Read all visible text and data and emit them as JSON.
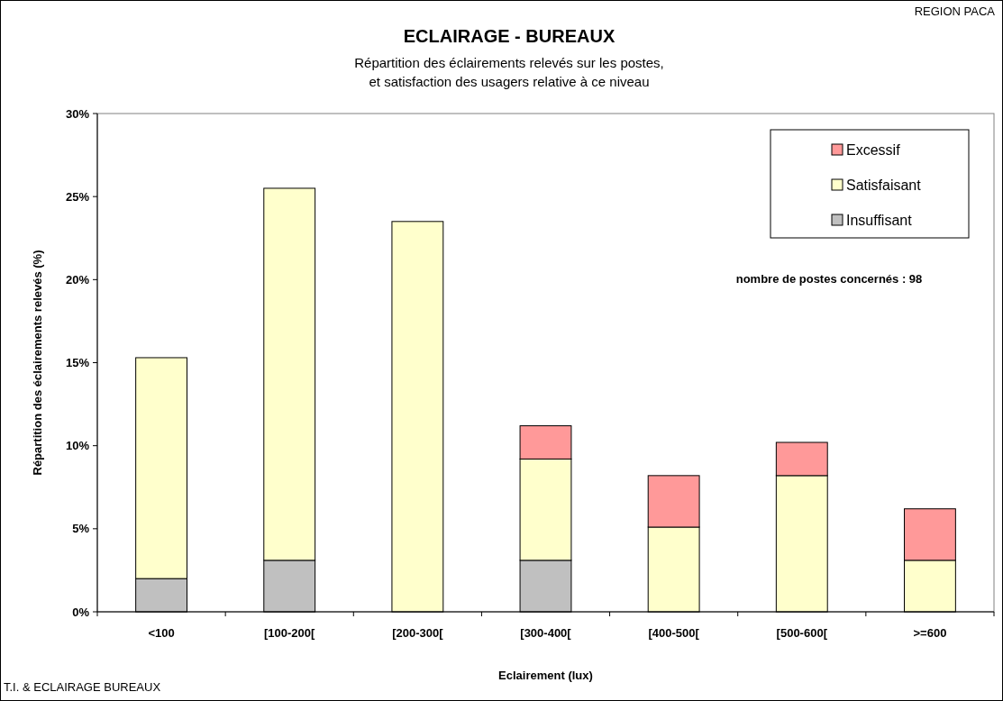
{
  "chart_data": {
    "type": "bar",
    "title": "ECLAIRAGE - BUREAUX",
    "subtitle": "Répartition des éclairements relevés sur les postes,\net satisfaction des usagers relative à ce niveau",
    "xlabel": "Eclairement (lux)",
    "ylabel": "Répartition des éclairements relevés (%)",
    "categories": [
      "<100",
      "[100-200[",
      "[200-300[",
      "[300-400[",
      "[400-500[",
      "[500-600[",
      ">=600"
    ],
    "stacked": true,
    "series": [
      {
        "name": "Insuffisant",
        "color": "#c0c0c0",
        "values": [
          2,
          3.1,
          0,
          3.1,
          0,
          0,
          0
        ]
      },
      {
        "name": "Satisfaisant",
        "color": "#ffffcc",
        "values": [
          13.3,
          22.4,
          23.5,
          6.1,
          5.1,
          8.2,
          3.1
        ]
      },
      {
        "name": "Excessif",
        "color": "#ff9999",
        "values": [
          0,
          0,
          0,
          2,
          3.1,
          2,
          3.1
        ]
      }
    ],
    "ylim": [
      0,
      30
    ],
    "yticks": [
      {
        "value": 0,
        "label": "0%"
      },
      {
        "value": 5,
        "label": "5%"
      },
      {
        "value": 10,
        "label": "10%"
      },
      {
        "value": 15,
        "label": "15%"
      },
      {
        "value": 20,
        "label": "20%"
      },
      {
        "value": 25,
        "label": "25%"
      },
      {
        "value": 30,
        "label": "30%"
      }
    ],
    "grid": false,
    "legend": "top right",
    "annotations": [
      "REGION PACA",
      "nombre de postes concernés : 98",
      "T.I. & ECLAIRAGE BUREAUX"
    ]
  }
}
